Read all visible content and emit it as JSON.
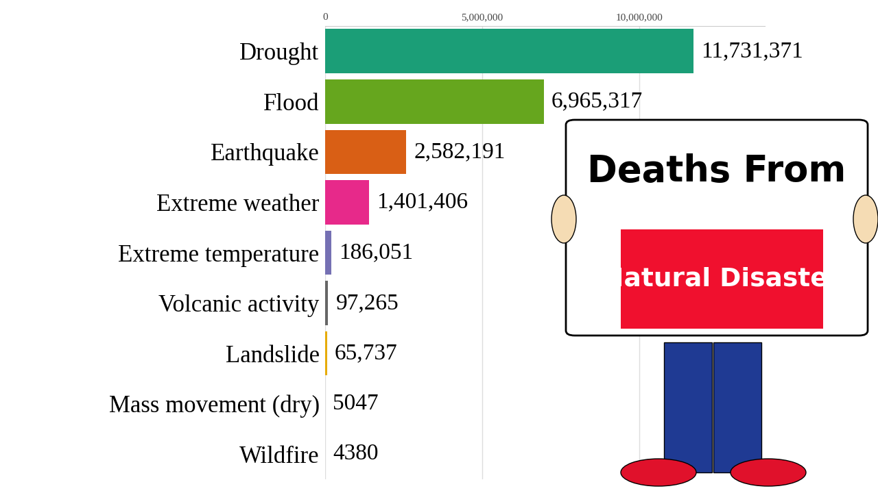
{
  "chart_data": {
    "type": "bar",
    "orientation": "horizontal",
    "title": "Deaths From",
    "subtitle": "Natural Disaster",
    "categories": [
      "Drought",
      "Flood",
      "Earthquake",
      "Extreme weather",
      "Extreme temperature",
      "Volcanic activity",
      "Landslide",
      "Mass movement (dry)",
      "Wildfire"
    ],
    "values": [
      11731371,
      6965317,
      2582191,
      1401406,
      186051,
      97265,
      65737,
      5047,
      4380
    ],
    "value_labels": [
      "11,731,371",
      "6,965,317",
      "2,582,191",
      "1,401,406",
      "186,051",
      "97,265",
      "65,737",
      "5047",
      "4380"
    ],
    "data_labels": true,
    "colors": [
      "#1b9e77",
      "#66a61e",
      "#d95f15",
      "#e7298a",
      "#7570b3",
      "#666666",
      "#e6ab02",
      "#a6761d",
      "#e6ab02"
    ],
    "xlim": [
      0,
      14000000
    ],
    "xticks": [
      0,
      {
        "value": 5000000,
        "label": "5,000,000"
      },
      {
        "value": 10000000,
        "label": "10,000,000"
      }
    ],
    "grid": true
  }
}
